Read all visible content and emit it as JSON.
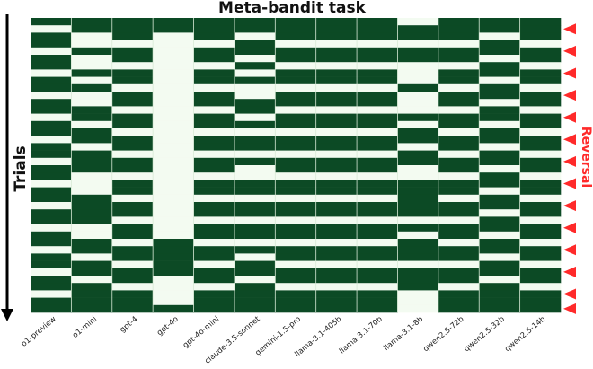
{
  "chart_data": {
    "type": "heatmap",
    "title": "Meta-bandit task",
    "ylabel": "Trials",
    "annotation": "Reversal",
    "colors": {
      "dark": "#0c4a25",
      "light": "#f3fbf1",
      "reversal": "#ff2a2a",
      "separator": "#d8ead6",
      "axis": "#000000"
    },
    "columns": [
      "o1-preview",
      "o1-mini",
      "gpt-4",
      "gpt-4o",
      "gpt-4o-mini",
      "claude-3.5-sonnet",
      "gemini-1.5-pro",
      "llama-3.1-405b",
      "llama-3.1-70b",
      "llama-3.1-8b",
      "qwen2.5-72b",
      "qwen2.5-32b",
      "qwen2.5-14b"
    ],
    "n_trials": 40,
    "reversal_trials": [
      1,
      4,
      7,
      10,
      13,
      16,
      19,
      22,
      25,
      28,
      31,
      34,
      37,
      39
    ],
    "choices": [
      [
        1,
        0,
        1,
        1,
        0,
        1,
        1,
        0,
        1,
        1,
        0,
        1,
        1,
        0,
        1,
        1,
        0,
        1,
        1,
        0,
        1,
        1,
        0,
        1,
        1,
        0,
        1,
        1,
        0,
        1,
        1,
        0,
        1,
        1,
        0,
        1,
        1,
        0,
        1,
        1
      ],
      [
        1,
        1,
        0,
        0,
        1,
        0,
        0,
        1,
        0,
        1,
        0,
        0,
        1,
        1,
        0,
        1,
        1,
        0,
        1,
        1,
        1,
        0,
        0,
        0,
        1,
        1,
        1,
        1,
        0,
        0,
        1,
        1,
        0,
        1,
        1,
        0,
        1,
        1,
        1,
        1
      ],
      [
        1,
        1,
        1,
        0,
        1,
        1,
        0,
        1,
        1,
        0,
        1,
        1,
        0,
        1,
        1,
        0,
        1,
        1,
        0,
        1,
        1,
        0,
        1,
        1,
        0,
        1,
        1,
        0,
        1,
        1,
        0,
        1,
        1,
        0,
        1,
        1,
        0,
        1,
        1,
        1
      ],
      [
        1,
        1,
        0,
        0,
        0,
        0,
        0,
        0,
        0,
        0,
        0,
        0,
        0,
        0,
        0,
        0,
        0,
        0,
        0,
        0,
        0,
        0,
        0,
        0,
        0,
        0,
        0,
        0,
        0,
        0,
        1,
        1,
        1,
        1,
        1,
        0,
        0,
        0,
        0,
        1
      ],
      [
        1,
        1,
        1,
        0,
        1,
        1,
        0,
        1,
        1,
        0,
        1,
        1,
        0,
        1,
        1,
        0,
        1,
        1,
        0,
        1,
        1,
        0,
        1,
        1,
        0,
        1,
        1,
        0,
        1,
        1,
        0,
        1,
        1,
        0,
        1,
        1,
        0,
        1,
        1,
        1
      ],
      [
        1,
        1,
        0,
        1,
        1,
        0,
        1,
        0,
        1,
        0,
        0,
        1,
        1,
        0,
        1,
        0,
        1,
        1,
        0,
        1,
        0,
        0,
        1,
        1,
        0,
        1,
        1,
        0,
        1,
        1,
        0,
        1,
        0,
        1,
        1,
        0,
        1,
        1,
        1,
        1
      ],
      [
        1,
        1,
        1,
        0,
        1,
        1,
        0,
        1,
        1,
        0,
        1,
        1,
        0,
        1,
        1,
        0,
        1,
        1,
        0,
        1,
        1,
        0,
        1,
        1,
        0,
        1,
        1,
        0,
        1,
        1,
        0,
        1,
        1,
        0,
        1,
        1,
        0,
        1,
        1,
        1
      ],
      [
        1,
        1,
        1,
        0,
        1,
        1,
        0,
        1,
        1,
        0,
        1,
        1,
        0,
        1,
        1,
        0,
        1,
        1,
        0,
        1,
        1,
        0,
        1,
        1,
        0,
        1,
        1,
        0,
        1,
        1,
        0,
        1,
        1,
        0,
        1,
        1,
        0,
        1,
        1,
        1
      ],
      [
        1,
        1,
        1,
        0,
        1,
        1,
        0,
        1,
        1,
        0,
        1,
        1,
        0,
        1,
        1,
        0,
        1,
        1,
        0,
        1,
        1,
        0,
        1,
        1,
        0,
        1,
        1,
        0,
        1,
        1,
        0,
        1,
        1,
        0,
        1,
        1,
        0,
        1,
        1,
        1
      ],
      [
        0,
        1,
        1,
        0,
        1,
        1,
        0,
        0,
        0,
        1,
        0,
        0,
        0,
        1,
        0,
        1,
        1,
        0,
        1,
        1,
        0,
        0,
        1,
        1,
        1,
        1,
        1,
        0,
        1,
        0,
        1,
        1,
        1,
        0,
        1,
        1,
        1,
        0,
        0,
        0
      ],
      [
        1,
        1,
        1,
        0,
        1,
        1,
        0,
        1,
        1,
        0,
        1,
        1,
        0,
        1,
        1,
        0,
        1,
        1,
        0,
        1,
        1,
        0,
        1,
        1,
        0,
        1,
        1,
        0,
        1,
        1,
        0,
        1,
        1,
        0,
        1,
        1,
        0,
        1,
        1,
        1
      ],
      [
        1,
        1,
        0,
        1,
        1,
        0,
        1,
        1,
        0,
        1,
        1,
        0,
        1,
        1,
        0,
        1,
        1,
        0,
        1,
        1,
        0,
        1,
        1,
        0,
        1,
        1,
        0,
        1,
        1,
        0,
        1,
        1,
        0,
        1,
        1,
        0,
        1,
        1,
        1,
        1
      ],
      [
        1,
        1,
        1,
        0,
        1,
        1,
        0,
        1,
        1,
        0,
        1,
        1,
        0,
        1,
        1,
        0,
        1,
        1,
        0,
        1,
        1,
        0,
        1,
        1,
        0,
        1,
        1,
        0,
        1,
        1,
        0,
        1,
        1,
        0,
        1,
        1,
        0,
        1,
        1,
        1
      ]
    ]
  }
}
